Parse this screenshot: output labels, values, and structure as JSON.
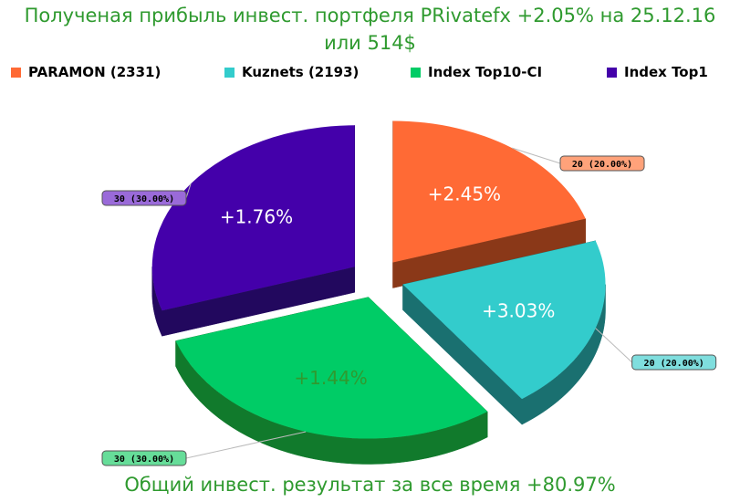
{
  "title_line1": "Полученая прибыль инвест. портфеля PRivatefx +2.05% на 25.12.16",
  "title_line2": "или 514$",
  "footer": "Общий инвест. результат за все время +80.97%",
  "colors": {
    "title": "#2f9a2f"
  },
  "chart_data": {
    "type": "pie",
    "style": "3d-exploded",
    "legend_position": "top",
    "categories": [
      "PARAMON (2331)",
      "Kuznets (2193)",
      "Index Top10-CI",
      "Index Top1"
    ],
    "values": [
      20,
      20,
      30,
      30
    ],
    "percents": [
      "20.00%",
      "20.00%",
      "30.00%",
      "30.00%"
    ],
    "callouts": [
      "20 (20.00%)",
      "20 (20.00%)",
      "30 (30.00%)",
      "30 (30.00%)"
    ],
    "slice_labels": [
      "+2.45%",
      "+3.03%",
      "+1.44%",
      "+1.76%"
    ],
    "colors": [
      "#ff6a35",
      "#33cccc",
      "#00cc66",
      "#4400aa"
    ],
    "side_colors": [
      "#8a3818",
      "#1a7070",
      "#117a2c",
      "#22085e"
    ],
    "callout_fills": [
      "#ffa27a",
      "#7fdede",
      "#66dd99",
      "#9a6ad9"
    ],
    "slice_label_colors": [
      "#ffffff",
      "#ffffff",
      "#2f9a2f",
      "#ffffff"
    ]
  }
}
